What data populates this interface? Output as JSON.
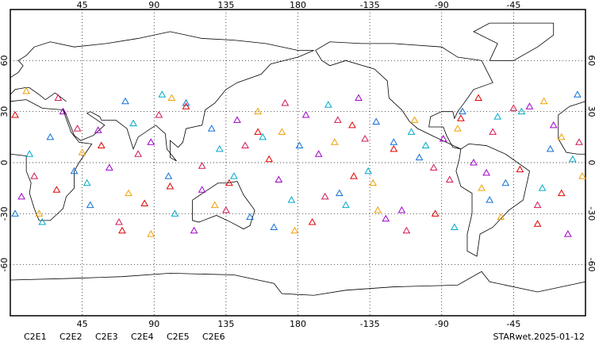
{
  "chart_data": {
    "type": "scatter",
    "xlim": [
      0,
      360
    ],
    "ylim": [
      -90,
      90
    ],
    "xticks": [
      45,
      90,
      135,
      180,
      {
        "value": 225,
        "label": "-135"
      },
      {
        "value": 270,
        "label": "-90"
      },
      {
        "value": 315,
        "label": "-45"
      }
    ],
    "yticks": [
      60,
      30,
      0,
      -30,
      -60
    ],
    "grid": true,
    "footer": "STARwet.2025-01-12",
    "series": [
      {
        "name": "C2E1",
        "color": "#00a8c8",
        "x": [
          12,
          48,
          77,
          103,
          131,
          158,
          176,
          199,
          224,
          251,
          278,
          305,
          333,
          352,
          20,
          95,
          140,
          210,
          260,
          320
        ],
        "values": [
          5,
          -12,
          23,
          -30,
          8,
          15,
          -22,
          34,
          -5,
          18,
          -38,
          27,
          -15,
          2,
          -35,
          40,
          -8,
          -25,
          10,
          30
        ]
      },
      {
        "name": "C2E2",
        "color": "#a000c8",
        "x": [
          7,
          33,
          62,
          88,
          115,
          142,
          168,
          193,
          218,
          245,
          271,
          298,
          325,
          349,
          55,
          120,
          185,
          235,
          290,
          340
        ],
        "values": [
          -20,
          30,
          -3,
          12,
          -40,
          25,
          -10,
          5,
          38,
          -28,
          14,
          -6,
          33,
          -42,
          19,
          -16,
          28,
          -33,
          0,
          22
        ]
      },
      {
        "name": "C2E3",
        "color": "#1070d8",
        "x": [
          25,
          50,
          72,
          99,
          126,
          150,
          181,
          206,
          229,
          256,
          283,
          310,
          338,
          3,
          40,
          110,
          165,
          240,
          300,
          355
        ],
        "values": [
          15,
          -25,
          36,
          -8,
          20,
          -32,
          10,
          -18,
          24,
          3,
          30,
          -12,
          8,
          -30,
          -5,
          35,
          -38,
          12,
          -22,
          40
        ]
      },
      {
        "name": "C2E4",
        "color": "#d01850",
        "x": [
          15,
          42,
          68,
          93,
          120,
          147,
          172,
          197,
          222,
          248,
          275,
          302,
          330,
          356,
          80,
          135,
          205,
          265,
          315,
          30
        ],
        "values": [
          -8,
          20,
          -35,
          28,
          -2,
          10,
          35,
          -20,
          14,
          -40,
          -10,
          18,
          -25,
          12,
          5,
          -28,
          25,
          -3,
          32,
          38
        ]
      },
      {
        "name": "C2E5",
        "color": "#e00000",
        "x": [
          3,
          29,
          57,
          84,
          110,
          137,
          162,
          189,
          214,
          240,
          266,
          293,
          319,
          345,
          70,
          155,
          215,
          282,
          330,
          100
        ],
        "values": [
          28,
          -16,
          10,
          -24,
          33,
          -12,
          2,
          -35,
          22,
          8,
          -30,
          38,
          -4,
          -18,
          -40,
          18,
          -8,
          26,
          -36,
          -14
        ]
      },
      {
        "name": "C2E6",
        "color": "#f0a000",
        "x": [
          18,
          45,
          74,
          101,
          128,
          155,
          178,
          203,
          227,
          253,
          280,
          307,
          334,
          358,
          10,
          88,
          170,
          230,
          295,
          345
        ],
        "values": [
          -30,
          6,
          -18,
          38,
          -25,
          30,
          -40,
          12,
          -12,
          25,
          20,
          -32,
          36,
          -8,
          42,
          -42,
          18,
          -28,
          -15,
          15
        ]
      }
    ]
  }
}
